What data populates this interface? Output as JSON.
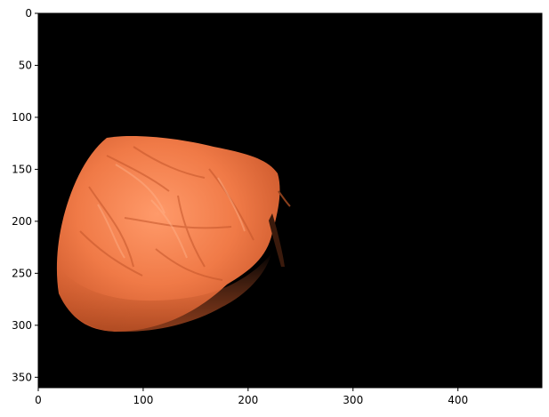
{
  "image_axes": {
    "x_ticks": [
      {
        "value": 0,
        "label": "0"
      },
      {
        "value": 100,
        "label": "100"
      },
      {
        "value": 200,
        "label": "200"
      },
      {
        "value": 300,
        "label": "300"
      },
      {
        "value": 400,
        "label": "400"
      }
    ],
    "y_ticks": [
      {
        "value": 0,
        "label": "0"
      },
      {
        "value": 50,
        "label": "50"
      },
      {
        "value": 100,
        "label": "100"
      },
      {
        "value": 150,
        "label": "150"
      },
      {
        "value": 200,
        "label": "200"
      },
      {
        "value": 250,
        "label": "250"
      },
      {
        "value": 300,
        "label": "300"
      },
      {
        "value": 350,
        "label": "350"
      }
    ],
    "x_range": [
      0,
      480
    ],
    "y_range": [
      0,
      360
    ],
    "y_inverted": true
  },
  "image_content": {
    "background_color": "#000000",
    "object_color": "#f07a47",
    "object_shadow_color": "#c9562a",
    "object_highlight_color": "#ff9a6a",
    "object": "orange-fabric-bundle"
  }
}
